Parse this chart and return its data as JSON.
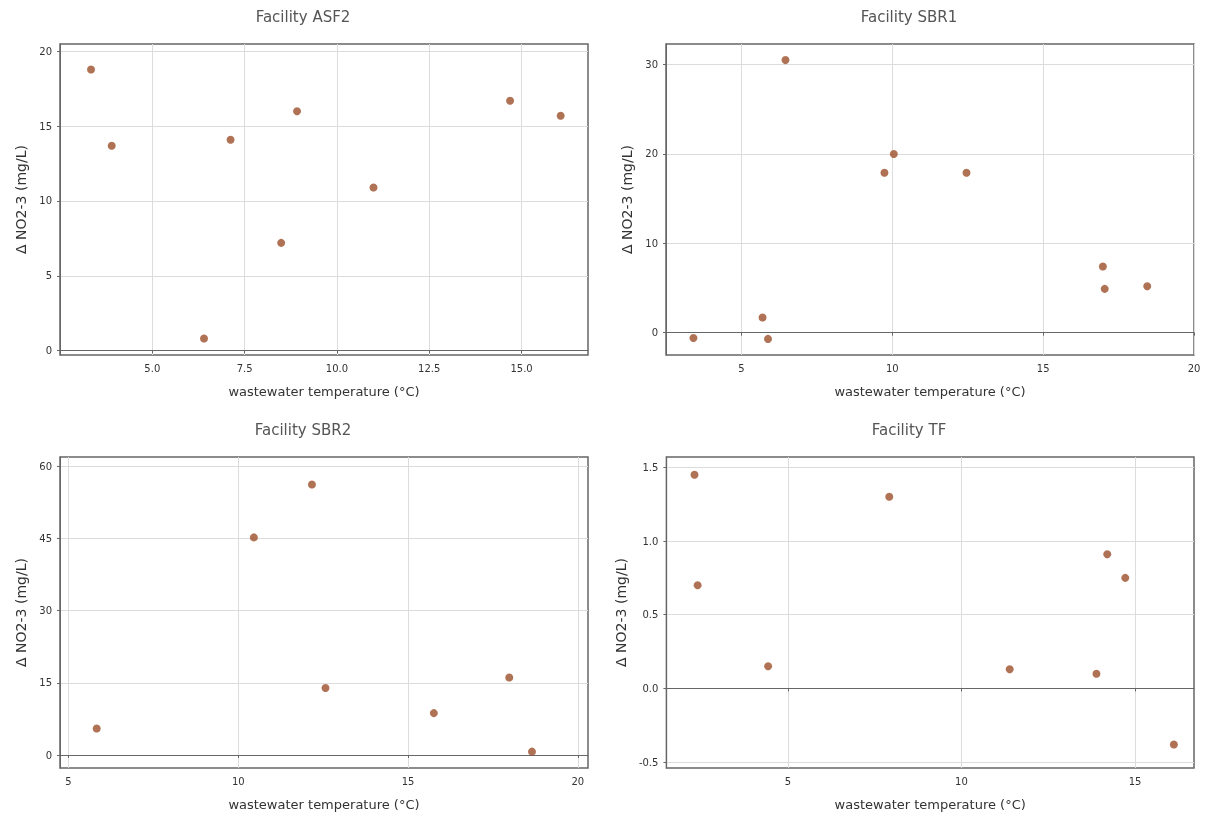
{
  "chart_data": [
    {
      "type": "scatter",
      "title": "Facility ASF2",
      "xlabel": "wastewater temperature (°C)",
      "ylabel": "Δ NO2-3 (mg/L)",
      "marker": "circle",
      "grid": true,
      "xlim": [
        2.5,
        16.8
      ],
      "xticks": [
        {
          "value": 5,
          "label": "5.0"
        },
        {
          "value": 7.5,
          "label": "7.5"
        },
        {
          "value": 10,
          "label": "10.0"
        },
        {
          "value": 12.5,
          "label": "12.5"
        },
        {
          "value": 15,
          "label": "15.0"
        }
      ],
      "ylim": [
        -0.3,
        20.5
      ],
      "yticks": [
        0,
        5,
        10,
        15,
        20
      ],
      "series": [
        {
          "color": "#9c4f2b",
          "x": [
            3.34,
            3.9,
            6.4,
            7.12,
            8.49,
            8.92,
            10.99,
            14.69,
            16.06
          ],
          "values": [
            18.8,
            13.7,
            0.8,
            14.1,
            7.2,
            16.0,
            10.9,
            16.7,
            15.7
          ]
        }
      ]
    },
    {
      "type": "scatter",
      "title": "Facility SBR1",
      "xlabel": "wastewater temperature (°C)",
      "ylabel": "Δ NO2-3 (mg/L)",
      "marker": "circle",
      "grid": true,
      "xlim": [
        2.5,
        20
      ],
      "xticks": [
        5,
        10,
        15,
        20
      ],
      "ylim": [
        -2.5,
        32.3
      ],
      "yticks": [
        0,
        10,
        20,
        30
      ],
      "series": [
        {
          "color": "#9c4f2b",
          "x": [
            3.41,
            5.7,
            5.88,
            6.46,
            9.74,
            10.05,
            12.46,
            16.98,
            17.04,
            18.45
          ],
          "values": [
            -0.6,
            1.7,
            -0.7,
            30.5,
            17.9,
            20.0,
            17.9,
            7.4,
            4.9,
            5.2
          ]
        }
      ]
    },
    {
      "type": "scatter",
      "title": "Facility SBR2",
      "xlabel": "wastewater temperature (°C)",
      "ylabel": "Δ NO2-3 (mg/L)",
      "marker": "circle",
      "grid": true,
      "xlim": [
        4.75,
        20.3
      ],
      "xticks": [
        5,
        10,
        15,
        20
      ],
      "ylim": [
        -2.7,
        61.9
      ],
      "yticks": [
        0,
        15,
        30,
        45,
        60
      ],
      "series": [
        {
          "color": "#9c4f2b",
          "x": [
            5.83,
            10.46,
            12.17,
            12.57,
            15.76,
            17.98,
            18.65
          ],
          "values": [
            5.5,
            45.2,
            56.2,
            13.9,
            8.7,
            16.1,
            0.7
          ]
        }
      ]
    },
    {
      "type": "scatter",
      "title": "Facility TF",
      "xlabel": "wastewater temperature (°C)",
      "ylabel": "Δ NO2-3 (mg/L)",
      "marker": "circle",
      "grid": true,
      "xlim": [
        1.5,
        16.7
      ],
      "xticks": [
        5,
        10,
        15
      ],
      "ylim": [
        -0.54,
        1.57
      ],
      "yticks": [
        {
          "value": -0.5,
          "label": "-0.5"
        },
        {
          "value": 0,
          "label": "0.0"
        },
        {
          "value": 0.5,
          "label": "0.5"
        },
        {
          "value": 1,
          "label": "1.0"
        },
        {
          "value": 1.5,
          "label": "1.5"
        }
      ],
      "series": [
        {
          "color": "#9c4f2b",
          "x": [
            2.31,
            2.4,
            4.43,
            7.92,
            11.39,
            13.89,
            14.2,
            14.72,
            16.12
          ],
          "values": [
            1.45,
            0.7,
            0.15,
            1.3,
            0.13,
            0.1,
            0.91,
            0.75,
            -0.38
          ]
        }
      ]
    }
  ]
}
